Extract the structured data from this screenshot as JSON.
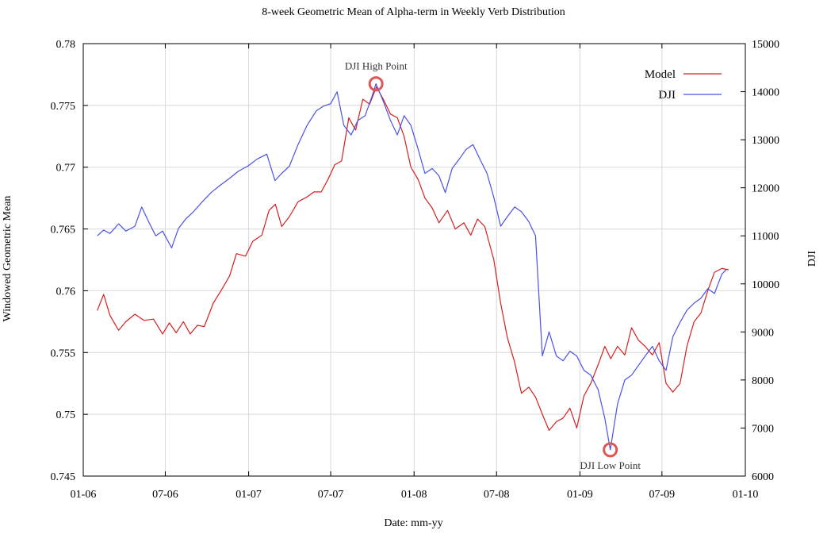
{
  "chart_data": {
    "type": "line",
    "title": "8-week Geometric Mean of Alpha-term in Weekly Verb Distribution",
    "xlabel": "Date: mm-yy",
    "ylabel": "Windowed Geometric Mean",
    "y2label": "DJI",
    "x_ticks": [
      "01-06",
      "07-06",
      "01-07",
      "07-07",
      "01-08",
      "07-08",
      "01-09",
      "07-09",
      "01-10"
    ],
    "y_ticks": [
      "0.745",
      "0.75",
      "0.755",
      "0.76",
      "0.765",
      "0.77",
      "0.775",
      "0.78"
    ],
    "y2_ticks": [
      "6000",
      "7000",
      "8000",
      "9000",
      "10000",
      "11000",
      "12000",
      "13000",
      "14000",
      "15000"
    ],
    "ylim": [
      0.745,
      0.78
    ],
    "y2lim": [
      6000,
      15000
    ],
    "grid": true,
    "legend_position": "top-right",
    "annotations": [
      {
        "text": "DJI High Point",
        "x": "2007-10-09",
        "y2": 14164
      },
      {
        "text": "DJI Low Point",
        "x": "2009-03-09",
        "y2": 6547
      }
    ],
    "series": [
      {
        "name": "Model",
        "axis": "left",
        "color": "#d42020",
        "points": [
          [
            "2006-02-01",
            0.7584
          ],
          [
            "2006-02-15",
            0.7597
          ],
          [
            "2006-03-01",
            0.758
          ],
          [
            "2006-03-20",
            0.7568
          ],
          [
            "2006-04-05",
            0.7575
          ],
          [
            "2006-04-25",
            0.7581
          ],
          [
            "2006-05-15",
            0.7576
          ],
          [
            "2006-06-05",
            0.7577
          ],
          [
            "2006-06-25",
            0.7565
          ],
          [
            "2006-07-10",
            0.7574
          ],
          [
            "2006-07-25",
            0.7566
          ],
          [
            "2006-08-10",
            0.7575
          ],
          [
            "2006-08-25",
            0.7565
          ],
          [
            "2006-09-10",
            0.7572
          ],
          [
            "2006-09-25",
            0.7571
          ],
          [
            "2006-10-15",
            0.759
          ],
          [
            "2006-11-01",
            0.76
          ],
          [
            "2006-11-20",
            0.7612
          ],
          [
            "2006-12-05",
            0.763
          ],
          [
            "2006-12-25",
            0.7628
          ],
          [
            "2007-01-10",
            0.764
          ],
          [
            "2007-01-30",
            0.7645
          ],
          [
            "2007-02-15",
            0.7665
          ],
          [
            "2007-03-01",
            0.767
          ],
          [
            "2007-03-15",
            0.7652
          ],
          [
            "2007-04-01",
            0.766
          ],
          [
            "2007-04-20",
            0.7672
          ],
          [
            "2007-05-10",
            0.7676
          ],
          [
            "2007-05-25",
            0.768
          ],
          [
            "2007-06-10",
            0.768
          ],
          [
            "2007-06-25",
            0.769
          ],
          [
            "2007-07-10",
            0.7702
          ],
          [
            "2007-07-25",
            0.7705
          ],
          [
            "2007-08-10",
            0.774
          ],
          [
            "2007-08-25",
            0.773
          ],
          [
            "2007-09-10",
            0.7755
          ],
          [
            "2007-09-25",
            0.7751
          ],
          [
            "2007-10-10",
            0.7765
          ],
          [
            "2007-10-25",
            0.7755
          ],
          [
            "2007-11-10",
            0.7743
          ],
          [
            "2007-11-25",
            0.774
          ],
          [
            "2007-12-10",
            0.7725
          ],
          [
            "2007-12-25",
            0.77
          ],
          [
            "2008-01-10",
            0.769
          ],
          [
            "2008-01-25",
            0.7675
          ],
          [
            "2008-02-10",
            0.7667
          ],
          [
            "2008-02-25",
            0.7655
          ],
          [
            "2008-03-15",
            0.7665
          ],
          [
            "2008-04-01",
            0.765
          ],
          [
            "2008-04-20",
            0.7655
          ],
          [
            "2008-05-05",
            0.7645
          ],
          [
            "2008-05-20",
            0.7658
          ],
          [
            "2008-06-05",
            0.7652
          ],
          [
            "2008-06-25",
            0.7625
          ],
          [
            "2008-07-10",
            0.759
          ],
          [
            "2008-07-25",
            0.7562
          ],
          [
            "2008-08-10",
            0.7542
          ],
          [
            "2008-08-25",
            0.7517
          ],
          [
            "2008-09-10",
            0.7522
          ],
          [
            "2008-09-25",
            0.7514
          ],
          [
            "2008-10-10",
            0.75
          ],
          [
            "2008-10-25",
            0.7487
          ],
          [
            "2008-11-10",
            0.7494
          ],
          [
            "2008-11-25",
            0.7497
          ],
          [
            "2008-12-10",
            0.7505
          ],
          [
            "2008-12-25",
            0.7489
          ],
          [
            "2009-01-10",
            0.7515
          ],
          [
            "2009-01-25",
            0.7525
          ],
          [
            "2009-02-10",
            0.754
          ],
          [
            "2009-02-25",
            0.7555
          ],
          [
            "2009-03-10",
            0.7545
          ],
          [
            "2009-03-25",
            0.7555
          ],
          [
            "2009-04-10",
            0.7548
          ],
          [
            "2009-04-25",
            0.757
          ],
          [
            "2009-05-10",
            0.756
          ],
          [
            "2009-05-25",
            0.7555
          ],
          [
            "2009-06-10",
            0.7548
          ],
          [
            "2009-06-25",
            0.7558
          ],
          [
            "2009-07-10",
            0.7525
          ],
          [
            "2009-07-25",
            0.7518
          ],
          [
            "2009-08-10",
            0.7525
          ],
          [
            "2009-08-25",
            0.7555
          ],
          [
            "2009-09-10",
            0.7575
          ],
          [
            "2009-09-25",
            0.7582
          ],
          [
            "2009-10-10",
            0.76
          ],
          [
            "2009-10-25",
            0.7615
          ],
          [
            "2009-11-10",
            0.7618
          ],
          [
            "2009-11-25",
            0.7617
          ]
        ]
      },
      {
        "name": "DJI",
        "axis": "right",
        "color": "#4a52e6",
        "points": [
          [
            "2006-02-01",
            11000
          ],
          [
            "2006-02-15",
            11120
          ],
          [
            "2006-03-01",
            11050
          ],
          [
            "2006-03-20",
            11250
          ],
          [
            "2006-04-05",
            11100
          ],
          [
            "2006-04-25",
            11200
          ],
          [
            "2006-05-10",
            11600
          ],
          [
            "2006-05-25",
            11300
          ],
          [
            "2006-06-10",
            11000
          ],
          [
            "2006-06-25",
            11100
          ],
          [
            "2006-07-15",
            10750
          ],
          [
            "2006-07-30",
            11150
          ],
          [
            "2006-08-15",
            11350
          ],
          [
            "2006-09-01",
            11500
          ],
          [
            "2006-09-20",
            11700
          ],
          [
            "2006-10-10",
            11900
          ],
          [
            "2006-10-30",
            12050
          ],
          [
            "2006-11-20",
            12200
          ],
          [
            "2006-12-10",
            12350
          ],
          [
            "2006-12-30",
            12450
          ],
          [
            "2007-01-20",
            12600
          ],
          [
            "2007-02-10",
            12700
          ],
          [
            "2007-02-28",
            12150
          ],
          [
            "2007-03-15",
            12300
          ],
          [
            "2007-04-01",
            12450
          ],
          [
            "2007-04-20",
            12900
          ],
          [
            "2007-05-10",
            13300
          ],
          [
            "2007-05-30",
            13600
          ],
          [
            "2007-06-15",
            13700
          ],
          [
            "2007-07-01",
            13750
          ],
          [
            "2007-07-15",
            14000
          ],
          [
            "2007-07-30",
            13300
          ],
          [
            "2007-08-15",
            13100
          ],
          [
            "2007-08-30",
            13400
          ],
          [
            "2007-09-15",
            13500
          ],
          [
            "2007-09-30",
            13900
          ],
          [
            "2007-10-09",
            14164
          ],
          [
            "2007-10-25",
            13800
          ],
          [
            "2007-11-10",
            13400
          ],
          [
            "2007-11-25",
            13100
          ],
          [
            "2007-12-10",
            13500
          ],
          [
            "2007-12-25",
            13300
          ],
          [
            "2008-01-10",
            12800
          ],
          [
            "2008-01-25",
            12300
          ],
          [
            "2008-02-10",
            12400
          ],
          [
            "2008-02-25",
            12250
          ],
          [
            "2008-03-10",
            11900
          ],
          [
            "2008-03-25",
            12400
          ],
          [
            "2008-04-10",
            12600
          ],
          [
            "2008-04-25",
            12800
          ],
          [
            "2008-05-10",
            12900
          ],
          [
            "2008-05-25",
            12600
          ],
          [
            "2008-06-10",
            12300
          ],
          [
            "2008-06-25",
            11800
          ],
          [
            "2008-07-10",
            11200
          ],
          [
            "2008-07-25",
            11400
          ],
          [
            "2008-08-10",
            11600
          ],
          [
            "2008-08-25",
            11500
          ],
          [
            "2008-09-10",
            11300
          ],
          [
            "2008-09-25",
            11000
          ],
          [
            "2008-10-10",
            8500
          ],
          [
            "2008-10-25",
            9000
          ],
          [
            "2008-11-10",
            8500
          ],
          [
            "2008-11-25",
            8400
          ],
          [
            "2008-12-10",
            8600
          ],
          [
            "2008-12-25",
            8500
          ],
          [
            "2009-01-10",
            8200
          ],
          [
            "2009-01-25",
            8100
          ],
          [
            "2009-02-10",
            7800
          ],
          [
            "2009-02-25",
            7200
          ],
          [
            "2009-03-09",
            6547
          ],
          [
            "2009-03-25",
            7500
          ],
          [
            "2009-04-10",
            8000
          ],
          [
            "2009-04-25",
            8100
          ],
          [
            "2009-05-10",
            8300
          ],
          [
            "2009-05-25",
            8500
          ],
          [
            "2009-06-10",
            8700
          ],
          [
            "2009-06-25",
            8400
          ],
          [
            "2009-07-10",
            8200
          ],
          [
            "2009-07-25",
            8900
          ],
          [
            "2009-08-10",
            9200
          ],
          [
            "2009-08-25",
            9450
          ],
          [
            "2009-09-10",
            9600
          ],
          [
            "2009-09-25",
            9700
          ],
          [
            "2009-10-10",
            9900
          ],
          [
            "2009-10-25",
            9800
          ],
          [
            "2009-11-10",
            10200
          ],
          [
            "2009-11-20",
            10300
          ]
        ]
      }
    ]
  }
}
